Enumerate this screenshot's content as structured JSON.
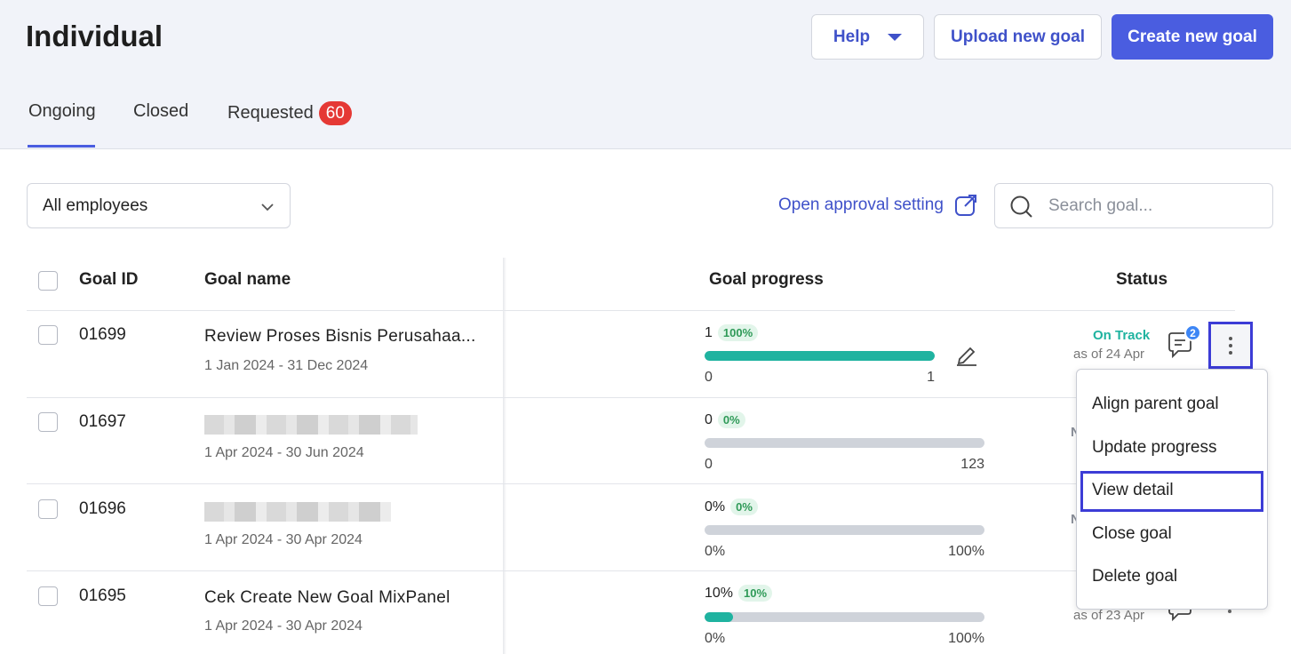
{
  "header": {
    "title": "Individual",
    "help_label": "Help",
    "upload_label": "Upload new goal",
    "create_label": "Create new goal"
  },
  "tabs": [
    {
      "label": "Ongoing",
      "active": true
    },
    {
      "label": "Closed",
      "active": false
    },
    {
      "label": "Requested",
      "badge": "60",
      "active": false
    }
  ],
  "filters": {
    "employee_select": "All employees",
    "approval_link": "Open approval setting",
    "search_placeholder": "Search goal..."
  },
  "table": {
    "columns": [
      "Goal ID",
      "Goal name",
      "Goal progress",
      "Status"
    ],
    "rows": [
      {
        "id": "01699",
        "name": "Review Proses Bisnis Perusahaa...",
        "date": "1 Jan 2024 - 31 Dec 2024",
        "value": "1",
        "percent_label": "100%",
        "progress": 1.0,
        "min": "0",
        "max": "1",
        "status": "On Track",
        "as_of": "as of 24 Apr",
        "comments": "2"
      },
      {
        "id": "01697",
        "name": "",
        "date": "1 Apr 2024 - 30 Jun 2024",
        "value": "0",
        "percent_label": "0%",
        "progress": 0.0,
        "min": "0",
        "max": "123",
        "status_hint": "N"
      },
      {
        "id": "01696",
        "name": "",
        "date": "1 Apr 2024 - 30 Apr 2024",
        "value": "0%",
        "percent_label": "0%",
        "progress": 0.0,
        "min": "0%",
        "max": "100%",
        "status_hint": "N"
      },
      {
        "id": "01695",
        "name": "Cek Create New Goal MixPanel",
        "date": "1 Apr 2024 - 30 Apr 2024",
        "value": "10%",
        "percent_label": "10%",
        "progress": 0.1,
        "min": "0%",
        "max": "100%",
        "as_of": "as of 23 Apr"
      }
    ]
  },
  "menu": {
    "items": [
      "Align parent goal",
      "Update progress",
      "View detail",
      "Close goal",
      "Delete goal"
    ]
  },
  "colors": {
    "accent": "#4a5de0",
    "progress_fill": "#1fb3a0",
    "badge_red": "#e53935",
    "highlight": "#3c3cd6"
  }
}
